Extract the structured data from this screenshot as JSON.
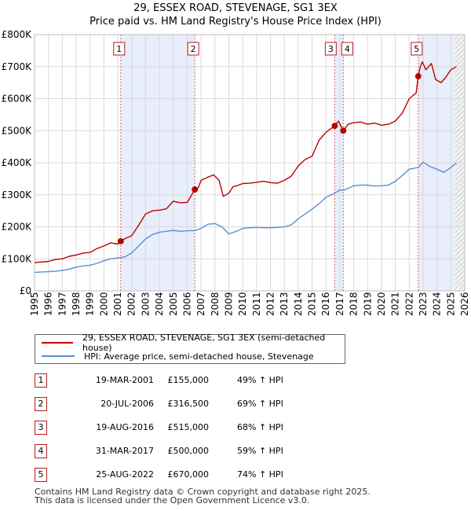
{
  "title_line1": "29, ESSEX ROAD, STEVENAGE, SG1 3EX",
  "title_line2": "Price paid vs. HM Land Registry's House Price Index (HPI)",
  "colors": {
    "property": "#c00000",
    "hpi": "#5b8fd0",
    "band": "#e8eefb",
    "grid": "#d9d9d9",
    "vline": "#e06060"
  },
  "legend": {
    "property_label": "29, ESSEX ROAD, STEVENAGE, SG1 3EX (semi-detached house)",
    "hpi_label": "HPI: Average price, semi-detached house, Stevenage"
  },
  "transactions": [
    {
      "id": "1",
      "date": "19-MAR-2001",
      "price": "£155,000",
      "hpi_change": "49% ↑ HPI"
    },
    {
      "id": "2",
      "date": "20-JUL-2006",
      "price": "£316,500",
      "hpi_change": "69% ↑ HPI"
    },
    {
      "id": "3",
      "date": "19-AUG-2016",
      "price": "£515,000",
      "hpi_change": "68% ↑ HPI"
    },
    {
      "id": "4",
      "date": "31-MAR-2017",
      "price": "£500,000",
      "hpi_change": "59% ↑ HPI"
    },
    {
      "id": "5",
      "date": "25-AUG-2022",
      "price": "£670,000",
      "hpi_change": "74% ↑ HPI"
    }
  ],
  "footer": {
    "line1": "Contains HM Land Registry data © Crown copyright and database right 2025.",
    "line2": "This data is licensed under the Open Government Licence v3.0."
  },
  "chart_data": {
    "type": "line",
    "title": "29, ESSEX ROAD, STEVENAGE, SG1 3EX",
    "subtitle": "Price paid vs. HM Land Registry's House Price Index (HPI)",
    "xlabel": "",
    "ylabel": "",
    "xlim": [
      1995,
      2026
    ],
    "ylim": [
      0,
      800000
    ],
    "grid": true,
    "legend_position": "below",
    "x_ticks": [
      "1995",
      "1996",
      "1997",
      "1998",
      "1999",
      "2000",
      "2001",
      "2002",
      "2003",
      "2004",
      "2005",
      "2006",
      "2007",
      "2008",
      "2009",
      "2010",
      "2011",
      "2012",
      "2013",
      "2014",
      "2015",
      "2016",
      "2017",
      "2018",
      "2019",
      "2020",
      "2021",
      "2022",
      "2023",
      "2024",
      "2025",
      "2026"
    ],
    "y_ticks": [
      {
        "value": 0,
        "label": "£0"
      },
      {
        "value": 100000,
        "label": "£100K"
      },
      {
        "value": 200000,
        "label": "£200K"
      },
      {
        "value": 300000,
        "label": "£300K"
      },
      {
        "value": 400000,
        "label": "£400K"
      },
      {
        "value": 500000,
        "label": "£500K"
      },
      {
        "value": 600000,
        "label": "£600K"
      },
      {
        "value": 700000,
        "label": "£700K"
      },
      {
        "value": 800000,
        "label": "£800K"
      }
    ],
    "shaded_periods": [
      [
        2001.21,
        2006.55
      ],
      [
        2016.63,
        2017.25
      ],
      [
        2022.65,
        2025.3
      ]
    ],
    "future_hatch_from": 2025.3,
    "series": [
      {
        "name": "29, ESSEX ROAD, STEVENAGE, SG1 3EX (semi-detached house)",
        "x": [
          1995.0,
          1996.0,
          1996.5,
          1997.0,
          1997.5,
          1998.0,
          1998.5,
          1999.0,
          1999.5,
          2000.0,
          2000.5,
          2001.0,
          2001.21,
          2001.5,
          2002.0,
          2002.5,
          2003.0,
          2003.5,
          2004.0,
          2004.5,
          2005.0,
          2005.5,
          2006.0,
          2006.55,
          2006.8,
          2007.0,
          2007.5,
          2007.9,
          2008.3,
          2008.6,
          2009.0,
          2009.3,
          2009.7,
          2010.0,
          2010.5,
          2011.0,
          2011.5,
          2012.0,
          2012.5,
          2013.0,
          2013.5,
          2014.0,
          2014.5,
          2015.0,
          2015.5,
          2016.0,
          2016.63,
          2016.9,
          2017.25,
          2017.6,
          2018.0,
          2018.5,
          2019.0,
          2019.5,
          2020.0,
          2020.5,
          2021.0,
          2021.5,
          2022.0,
          2022.5,
          2022.65,
          2022.8,
          2022.95,
          2023.2,
          2023.6,
          2023.9,
          2024.3,
          2024.6,
          2025.0,
          2025.4
        ],
        "y": [
          88000,
          92000,
          98000,
          100000,
          108000,
          112000,
          118000,
          120000,
          132000,
          140000,
          150000,
          146000,
          155000,
          163000,
          172000,
          205000,
          240000,
          250000,
          252000,
          256000,
          280000,
          275000,
          276000,
          316500,
          322000,
          345000,
          355000,
          362000,
          345000,
          295000,
          305000,
          325000,
          330000,
          335000,
          336000,
          339000,
          342000,
          338000,
          336000,
          345000,
          358000,
          390000,
          410000,
          420000,
          470000,
          495000,
          515000,
          530000,
          500000,
          520000,
          525000,
          527000,
          520000,
          524000,
          517000,
          520000,
          530000,
          555000,
          600000,
          618000,
          670000,
          700000,
          715000,
          690000,
          710000,
          660000,
          650000,
          665000,
          690000,
          700000
        ]
      },
      {
        "name": "HPI: Average price, semi-detached house, Stevenage",
        "x": [
          1995.0,
          1996.0,
          1996.5,
          1997.0,
          1997.5,
          1998.0,
          1998.5,
          1999.0,
          1999.5,
          2000.0,
          2000.5,
          2001.0,
          2001.21,
          2001.5,
          2002.0,
          2002.5,
          2003.0,
          2003.5,
          2004.0,
          2004.5,
          2005.0,
          2005.5,
          2006.0,
          2006.55,
          2007.0,
          2007.5,
          2008.0,
          2008.5,
          2009.0,
          2009.5,
          2010.0,
          2010.5,
          2011.0,
          2011.5,
          2012.0,
          2012.5,
          2013.0,
          2013.5,
          2014.0,
          2014.5,
          2015.0,
          2015.5,
          2016.0,
          2016.63,
          2017.0,
          2017.25,
          2017.6,
          2018.0,
          2018.5,
          2019.0,
          2019.5,
          2020.0,
          2020.5,
          2021.0,
          2021.5,
          2022.0,
          2022.65,
          2023.0,
          2023.5,
          2024.0,
          2024.5,
          2025.0,
          2025.4
        ],
        "y": [
          58000,
          60000,
          61000,
          64000,
          68000,
          74000,
          78000,
          80000,
          86000,
          94000,
          100000,
          103000,
          104000,
          106000,
          118000,
          140000,
          162000,
          176000,
          183000,
          186000,
          189000,
          186000,
          188000,
          188000,
          195000,
          208000,
          210000,
          200000,
          178000,
          185000,
          195000,
          197000,
          198000,
          197000,
          197000,
          198000,
          200000,
          206000,
          225000,
          240000,
          255000,
          272000,
          292000,
          305000,
          315000,
          314000,
          320000,
          328000,
          330000,
          330000,
          327000,
          328000,
          330000,
          342000,
          360000,
          380000,
          385000,
          402000,
          388000,
          380000,
          370000,
          385000,
          400000
        ]
      }
    ],
    "sales": [
      {
        "label": "1",
        "x": 2001.21,
        "y": 155000
      },
      {
        "label": "2",
        "x": 2006.55,
        "y": 316500
      },
      {
        "label": "3",
        "x": 2016.63,
        "y": 515000
      },
      {
        "label": "4",
        "x": 2017.25,
        "y": 500000
      },
      {
        "label": "5",
        "x": 2022.65,
        "y": 670000
      }
    ]
  }
}
